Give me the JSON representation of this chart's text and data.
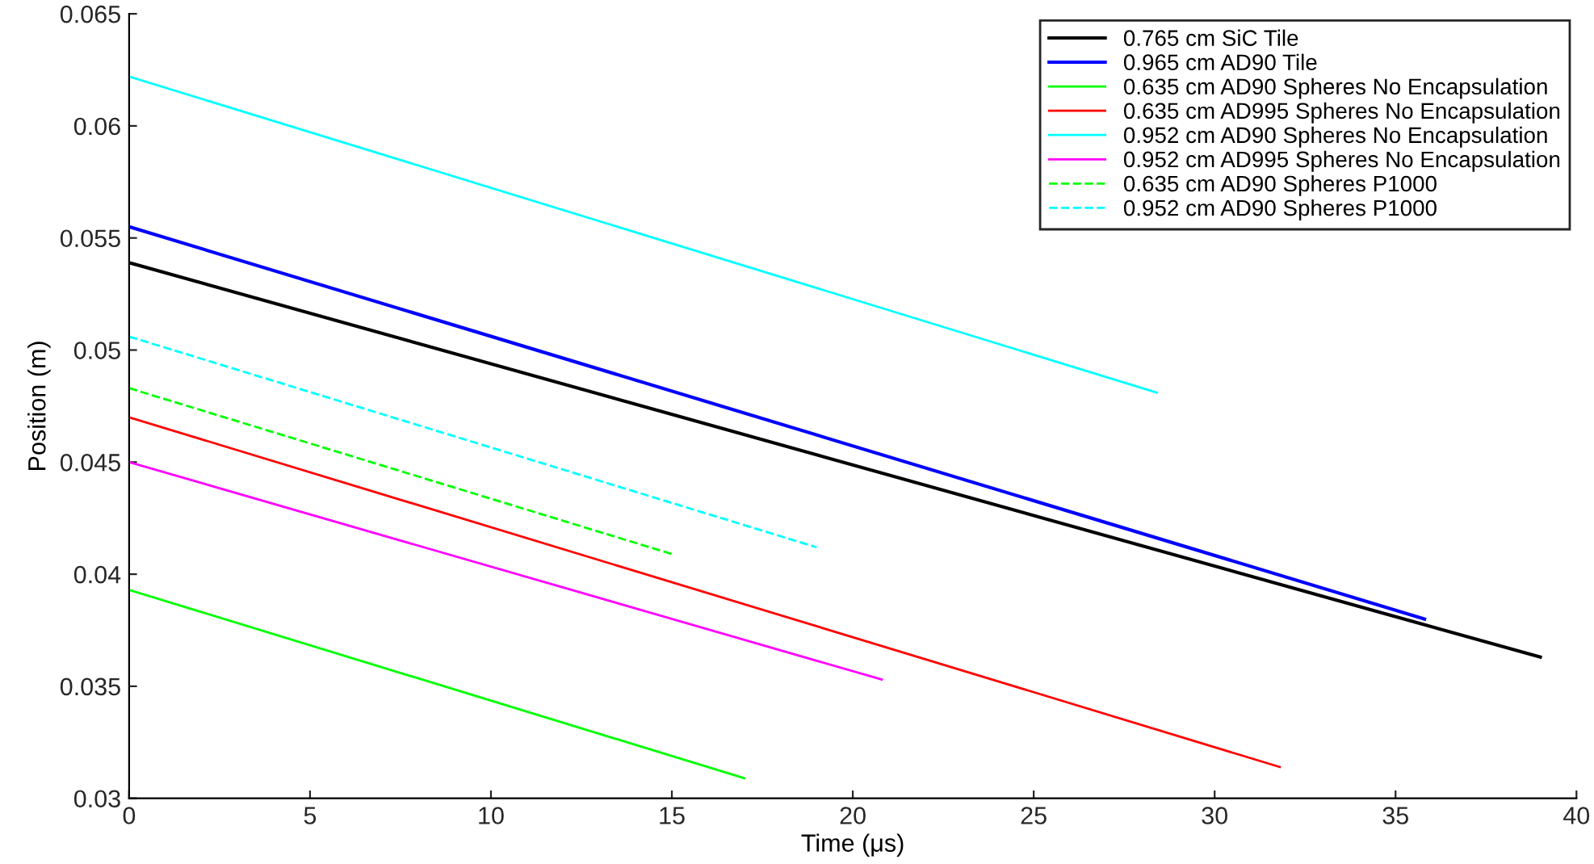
{
  "chart_data": {
    "type": "line",
    "xlabel": "Time (μs)",
    "ylabel": "Position (m)",
    "xlim": [
      0,
      40
    ],
    "xticks": [
      0,
      5,
      10,
      15,
      20,
      25,
      30,
      35,
      40
    ],
    "ylim": [
      0.03,
      0.065
    ],
    "yticks": [
      0.03,
      0.035,
      0.04,
      0.045,
      0.05,
      0.055,
      0.06,
      0.065
    ],
    "grid": false,
    "legend": "top right",
    "marker": "none",
    "series": [
      {
        "name": "0.765 cm SiC Tile",
        "color": "#000000",
        "x": [
          0,
          39
        ],
        "values": [
          0.0539,
          0.0363
        ]
      },
      {
        "name": "0.965 cm AD90 Tile",
        "color": "#0000ff",
        "x": [
          0,
          35.8
        ],
        "values": [
          0.0555,
          0.038
        ]
      },
      {
        "name": "0.635 cm AD90 Spheres No Encapsulation",
        "color": "#00ff00",
        "x": [
          0,
          17
        ],
        "values": [
          0.0393,
          0.0309
        ]
      },
      {
        "name": "0.635 cm AD995 Spheres No Encapsulation",
        "color": "#ff0000",
        "x": [
          0,
          31.8
        ],
        "values": [
          0.047,
          0.0314
        ]
      },
      {
        "name": "0.952 cm AD90 Spheres No Encapsulation",
        "color": "#00ffff",
        "x": [
          0,
          28.4
        ],
        "values": [
          0.0622,
          0.0481
        ]
      },
      {
        "name": "0.952 cm AD995 Spheres No Encapsulation",
        "color": "#ff00ff",
        "x": [
          0,
          20.8
        ],
        "values": [
          0.045,
          0.0353
        ]
      },
      {
        "name": "0.635 cm AD90 Spheres P1000",
        "color": "#00ff00",
        "line_style": "dashed",
        "x": [
          0,
          15
        ],
        "values": [
          0.0483,
          0.0409
        ]
      },
      {
        "name": "0.952 cm AD90 Spheres P1000",
        "color": "#00ffff",
        "line_style": "dashed",
        "x": [
          0,
          19
        ],
        "values": [
          0.0506,
          0.0412
        ]
      }
    ]
  }
}
